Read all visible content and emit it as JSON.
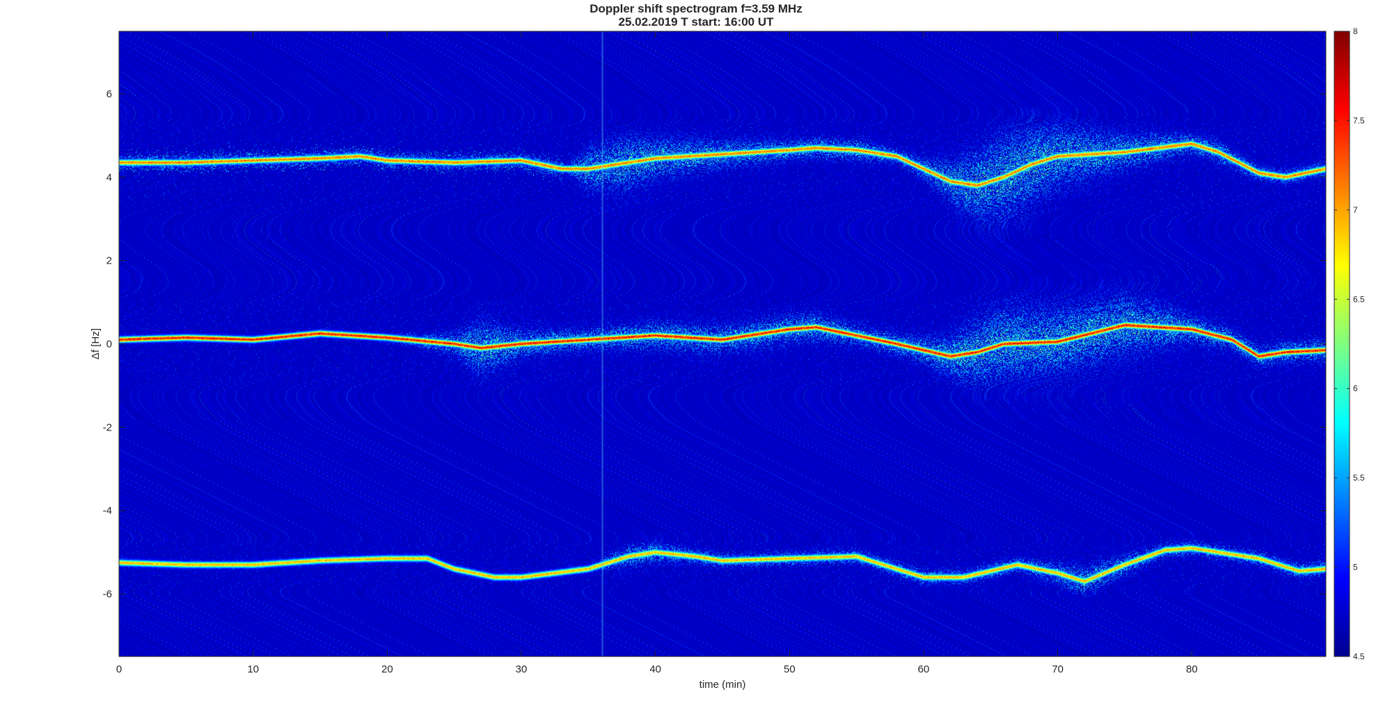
{
  "chart_data": {
    "type": "heatmap",
    "title": "Doppler shift spectrogram f=3.59 MHz",
    "subtitle": "25.02.2019   T start: 16:00 UT",
    "xlabel": "time (min)",
    "ylabel": "Δf [Hz]",
    "xlim": [
      0,
      90
    ],
    "ylim": [
      -7.5,
      7.5
    ],
    "x_ticks": [
      0,
      10,
      20,
      30,
      40,
      50,
      60,
      70,
      80
    ],
    "y_ticks": [
      -6,
      -4,
      -2,
      0,
      2,
      4,
      6
    ],
    "colorbar": {
      "colormap": "jet",
      "clim": [
        4.5,
        8
      ],
      "ticks": [
        4.5,
        5,
        5.5,
        6,
        6.5,
        7,
        7.5,
        8
      ]
    },
    "background_level": 4.7,
    "traces": [
      {
        "x": [
          0,
          5,
          10,
          15,
          18,
          20,
          25,
          30,
          33,
          35,
          38,
          40,
          45,
          50,
          52,
          55,
          58,
          60,
          62,
          64,
          66,
          68,
          70,
          75,
          80,
          82,
          85,
          87,
          90
        ],
        "y": [
          4.35,
          4.35,
          4.4,
          4.45,
          4.5,
          4.4,
          4.35,
          4.4,
          4.2,
          4.2,
          4.35,
          4.45,
          4.55,
          4.65,
          4.7,
          4.65,
          4.5,
          4.2,
          3.9,
          3.8,
          4.0,
          4.3,
          4.5,
          4.6,
          4.8,
          4.6,
          4.1,
          4.0,
          4.2
        ],
        "intensity": 7.2,
        "spread": [
          0,
          0,
          0,
          0,
          0,
          0,
          0,
          0,
          0,
          0.6,
          0.8,
          0.6,
          0.4,
          0.3,
          0.3,
          0.3,
          0.2,
          0.3,
          0.6,
          1.0,
          1.3,
          1.2,
          0.9,
          0.5,
          0.3,
          0.3,
          0.2,
          0.2,
          0.2
        ]
      },
      {
        "x": [
          0,
          5,
          10,
          15,
          20,
          25,
          27,
          30,
          35,
          40,
          45,
          50,
          52,
          55,
          58,
          60,
          62,
          64,
          66,
          70,
          75,
          80,
          83,
          85,
          87,
          90
        ],
        "y": [
          0.1,
          0.15,
          0.1,
          0.25,
          0.15,
          0.0,
          -0.1,
          0.0,
          0.1,
          0.2,
          0.1,
          0.35,
          0.4,
          0.2,
          0.0,
          -0.15,
          -0.3,
          -0.2,
          0.0,
          0.05,
          0.45,
          0.35,
          0.1,
          -0.3,
          -0.2,
          -0.15
        ],
        "intensity": 7.6,
        "spread": [
          0.1,
          0.1,
          0.1,
          0.1,
          0.1,
          0.3,
          0.8,
          0.4,
          0.3,
          0.4,
          0.4,
          0.4,
          0.4,
          0.3,
          0.3,
          0.4,
          0.6,
          1.0,
          1.1,
          1.0,
          0.9,
          0.4,
          0.3,
          0.3,
          0.3,
          0.3
        ]
      },
      {
        "x": [
          0,
          5,
          10,
          15,
          20,
          23,
          25,
          28,
          30,
          35,
          38,
          40,
          43,
          45,
          50,
          55,
          58,
          60,
          63,
          67,
          70,
          72,
          75,
          78,
          80,
          85,
          88,
          90
        ],
        "y": [
          -5.25,
          -5.3,
          -5.3,
          -5.2,
          -5.15,
          -5.15,
          -5.4,
          -5.6,
          -5.6,
          -5.4,
          -5.1,
          -5.0,
          -5.1,
          -5.2,
          -5.15,
          -5.1,
          -5.4,
          -5.6,
          -5.6,
          -5.3,
          -5.5,
          -5.7,
          -5.3,
          -4.95,
          -4.9,
          -5.15,
          -5.45,
          -5.4
        ],
        "intensity": 7.0,
        "spread": [
          0.1,
          0.1,
          0.1,
          0.1,
          0.1,
          0.1,
          0.1,
          0.1,
          0.1,
          0.1,
          0.3,
          0.3,
          0.2,
          0.2,
          0.2,
          0.2,
          0.2,
          0.2,
          0.2,
          0.2,
          0.3,
          0.4,
          0.3,
          0.2,
          0.2,
          0.2,
          0.2,
          0.2
        ]
      }
    ],
    "vertical_line_x": 36
  }
}
